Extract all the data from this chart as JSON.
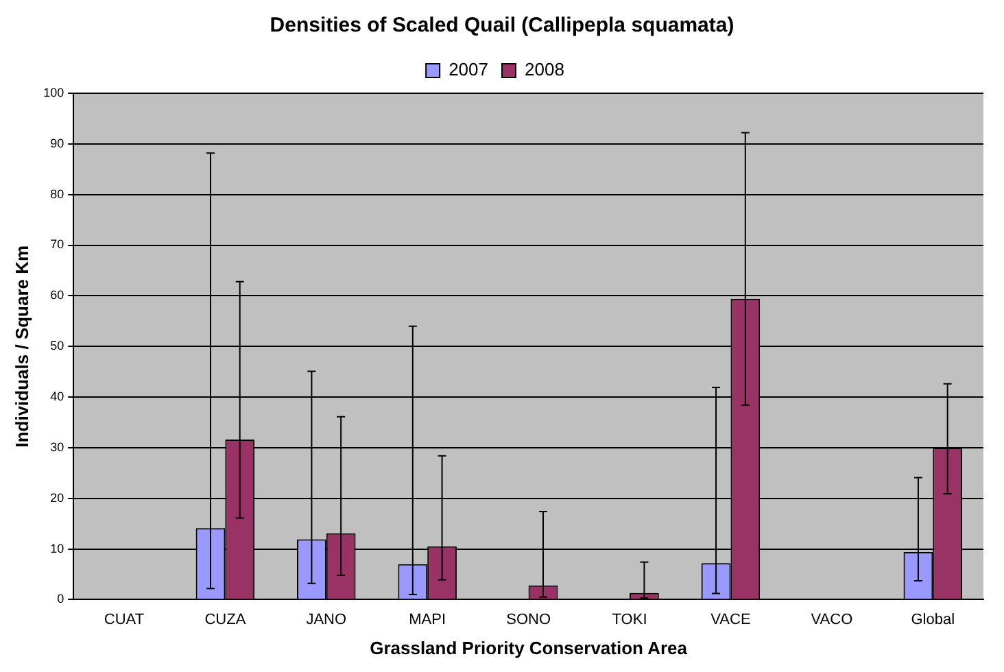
{
  "chart_data": {
    "type": "bar",
    "title": "Densities of Scaled Quail (Callipepla squamata)",
    "xlabel": "Grassland Priority Conservation Area",
    "ylabel": "Individuals / Square Km",
    "categories": [
      "CUAT",
      "CUZA",
      "JANO",
      "MAPI",
      "SONO",
      "TOKI",
      "VACE",
      "VACO",
      "Global"
    ],
    "series": [
      {
        "name": "2007",
        "color": "#9999ff",
        "values": [
          null,
          14.1,
          11.9,
          7.0,
          null,
          null,
          7.2,
          null,
          9.4
        ],
        "errors": [
          null,
          [
            2.2,
            88.2
          ],
          [
            3.2,
            45.1
          ],
          [
            1.0,
            54.0
          ],
          null,
          null,
          [
            1.2,
            41.9
          ],
          null,
          [
            3.7,
            24.1
          ]
        ]
      },
      {
        "name": "2008",
        "color": "#993366",
        "values": [
          null,
          31.6,
          13.1,
          10.5,
          2.8,
          1.3,
          59.4,
          null,
          30.0
        ],
        "errors": [
          null,
          [
            16.1,
            62.8
          ],
          [
            4.8,
            36.1
          ],
          [
            3.9,
            28.4
          ],
          [
            0.5,
            17.4
          ],
          [
            0.3,
            7.4
          ],
          [
            38.4,
            92.2
          ],
          null,
          [
            20.9,
            42.6
          ]
        ]
      }
    ],
    "ylim": [
      0,
      100
    ],
    "yticks": [
      0,
      10,
      20,
      30,
      40,
      50,
      60,
      70,
      80,
      90,
      100
    ],
    "grid": "y",
    "legend": "top"
  }
}
